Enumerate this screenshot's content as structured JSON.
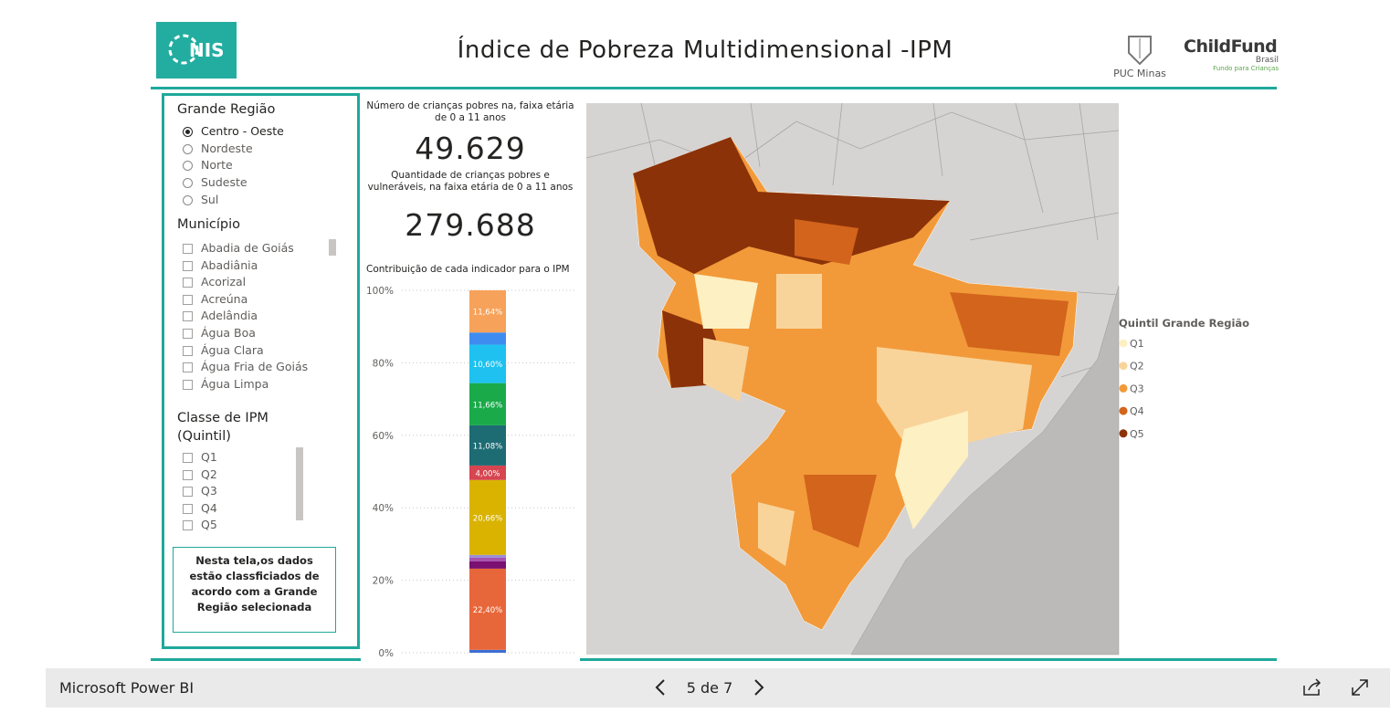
{
  "header": {
    "title": "Índice de Pobreza Multidimensional -IPM",
    "logos": {
      "nis": "NIS",
      "puc": "PUC Minas",
      "childfund": "ChildFund",
      "childfund_country": "Brasil",
      "childfund_tagline": "Fundo para Crianças"
    }
  },
  "filters": {
    "region": {
      "title": "Grande Região",
      "options": [
        {
          "label": "Centro - Oeste",
          "selected": true
        },
        {
          "label": "Nordeste",
          "selected": false
        },
        {
          "label": "Norte",
          "selected": false
        },
        {
          "label": "Sudeste",
          "selected": false
        },
        {
          "label": "Sul",
          "selected": false
        }
      ]
    },
    "municipality": {
      "title": "Município",
      "options": [
        "Abadia de Goiás",
        "Abadiânia",
        "Acorizal",
        "Acreúna",
        "Adelândia",
        "Água Boa",
        "Água Clara",
        "Água Fria de Goiás",
        "Água Limpa"
      ]
    },
    "quintile": {
      "title": "Classe de IPM (Quintil)",
      "options": [
        "Q1",
        "Q2",
        "Q3",
        "Q4",
        "Q5"
      ]
    },
    "note": "Nesta tela,os dados estão classficiados de acordo com a  Grande Região selecionada"
  },
  "kpis": [
    {
      "label": "Número de crianças pobres na, faixa etária de 0 a 11 anos",
      "value": "49.629"
    },
    {
      "label": "Quantidade de crianças pobres e vulneráveis, na faixa etária de 0 a 11 anos",
      "value": "279.688"
    }
  ],
  "chart_data": {
    "type": "stacked_bar",
    "title": "Contribuição de cada indicador para o IPM",
    "ylim": [
      0,
      100
    ],
    "yticks": [
      {
        "value": 0,
        "label": "0%"
      },
      {
        "value": 20,
        "label": "20%"
      },
      {
        "value": 40,
        "label": "40%"
      },
      {
        "value": 60,
        "label": "60%"
      },
      {
        "value": 80,
        "label": "80%"
      },
      {
        "value": 100,
        "label": "100%"
      }
    ],
    "grid": true,
    "series": [
      {
        "color": "#3b6fd4",
        "values": [
          0.8
        ],
        "value_labels": [
          null
        ]
      },
      {
        "color": "#e8673a",
        "values": [
          22.4
        ],
        "value_labels": [
          "22,40%"
        ]
      },
      {
        "color": "#7a1070",
        "values": [
          2.0
        ],
        "value_labels": [
          null
        ]
      },
      {
        "color": "#a653b0",
        "values": [
          1.0
        ],
        "value_labels": [
          null
        ]
      },
      {
        "color": "#9b8fd8",
        "values": [
          0.8
        ],
        "value_labels": [
          null
        ]
      },
      {
        "color": "#d9b300",
        "values": [
          20.66
        ],
        "value_labels": [
          "20,66%"
        ]
      },
      {
        "color": "#d64550",
        "values": [
          4.0
        ],
        "value_labels": [
          "4,00%"
        ]
      },
      {
        "color": "#1d6b73",
        "values": [
          11.08
        ],
        "value_labels": [
          "11,08%"
        ]
      },
      {
        "color": "#1aaa4a",
        "values": [
          11.66
        ],
        "value_labels": [
          "11,66%"
        ]
      },
      {
        "color": "#1ec1ef",
        "values": [
          10.6
        ],
        "value_labels": [
          "10,60%"
        ]
      },
      {
        "color": "#3f8cf0",
        "values": [
          3.36
        ],
        "value_labels": [
          null
        ]
      },
      {
        "color": "#f6a25a",
        "values": [
          11.64
        ],
        "value_labels": [
          "11,64%"
        ]
      }
    ]
  },
  "map": {
    "legend": {
      "title": "Quintil Grande Região",
      "items": [
        {
          "label": "Q1",
          "color": "#fdf0c2"
        },
        {
          "label": "Q2",
          "color": "#f9d49a"
        },
        {
          "label": "Q3",
          "color": "#f29a3a"
        },
        {
          "label": "Q4",
          "color": "#d2641c"
        },
        {
          "label": "Q5",
          "color": "#8c3208"
        }
      ]
    }
  },
  "footer": {
    "app": "Microsoft Power BI",
    "page": "5 de 7"
  }
}
